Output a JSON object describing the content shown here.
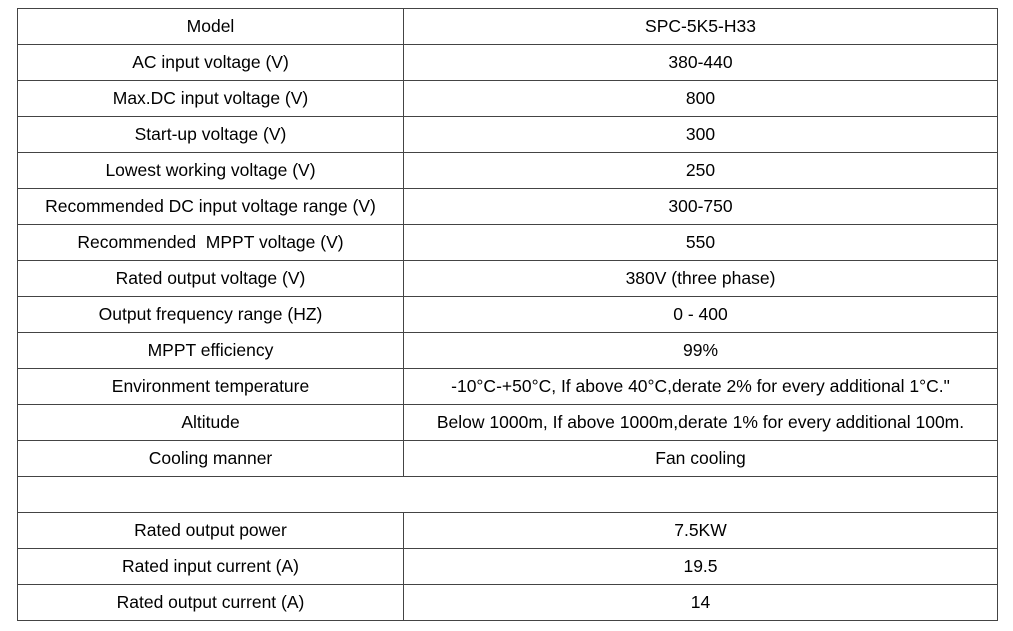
{
  "table": {
    "sections": [
      [
        [
          "Model",
          "SPC-5K5-H33"
        ],
        [
          "AC input voltage (V)",
          "380-440"
        ],
        [
          "Max.DC input voltage (V)",
          "800"
        ],
        [
          "Start-up voltage (V)",
          "300"
        ],
        [
          "Lowest working voltage (V)",
          "250"
        ],
        [
          "Recommended DC input voltage range (V)",
          "300-750"
        ],
        [
          "Recommended  MPPT voltage (V)",
          "550"
        ],
        [
          "Rated output voltage (V)",
          "380V (three phase)"
        ],
        [
          "Output frequency range (HZ)",
          "0 - 400"
        ],
        [
          "MPPT efficiency",
          "99%"
        ],
        [
          "Environment temperature",
          "-10°C-+50°C, If above 40°C,derate 2% for every additional 1°C.\""
        ],
        [
          "Altitude",
          "Below 1000m, If above 1000m,derate 1% for every additional 100m."
        ],
        [
          "Cooling manner",
          "Fan cooling"
        ]
      ],
      [
        [
          "Rated output power",
          "7.5KW"
        ],
        [
          "Rated input current (A)",
          "19.5"
        ],
        [
          "Rated output current (A)",
          "14"
        ]
      ]
    ]
  }
}
